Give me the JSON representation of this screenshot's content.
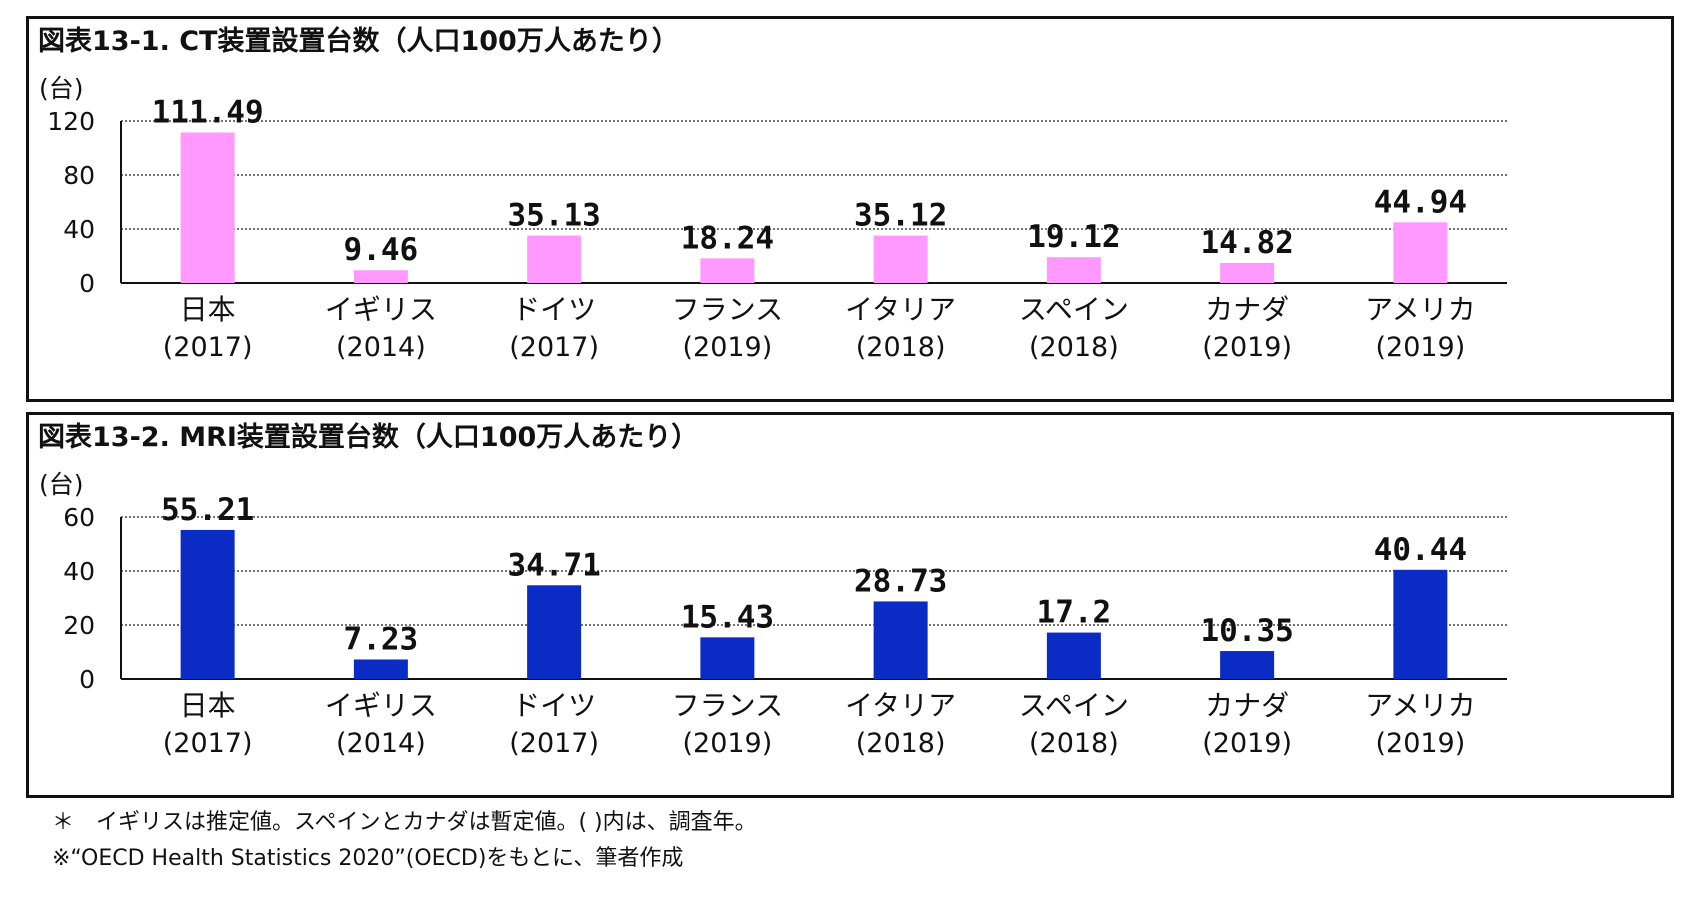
{
  "chart_data": [
    {
      "type": "bar",
      "title": "図表13-1. CT装置設置台数（人口100万人あたり）",
      "unit_label": "(台)",
      "categories": [
        "日本",
        "イギリス",
        "ドイツ",
        "フランス",
        "イタリア",
        "スペイン",
        "カナダ",
        "アメリカ"
      ],
      "category_years": [
        "(2017)",
        "(2014)",
        "(2017)",
        "(2019)",
        "(2018)",
        "(2018)",
        "(2019)",
        "(2019)"
      ],
      "values": [
        111.49,
        9.46,
        35.13,
        18.24,
        35.12,
        19.12,
        14.82,
        44.94
      ],
      "value_labels": [
        "111.49",
        "9.46",
        "35.13",
        "18.24",
        "35.12",
        "19.12",
        "14.82",
        "44.94"
      ],
      "ylim": [
        0,
        120
      ],
      "yticks": [
        0,
        40,
        80,
        120
      ],
      "grid": true,
      "grid_style": "dotted",
      "bar_color": "#ff99ff"
    },
    {
      "type": "bar",
      "title": "図表13-2. MRI装置設置台数（人口100万人あたり）",
      "unit_label": "(台)",
      "categories": [
        "日本",
        "イギリス",
        "ドイツ",
        "フランス",
        "イタリア",
        "スペイン",
        "カナダ",
        "アメリカ"
      ],
      "category_years": [
        "(2017)",
        "(2014)",
        "(2017)",
        "(2019)",
        "(2018)",
        "(2018)",
        "(2019)",
        "(2019)"
      ],
      "values": [
        55.21,
        7.23,
        34.71,
        15.43,
        28.73,
        17.2,
        10.35,
        40.44
      ],
      "value_labels": [
        "55.21",
        "7.23",
        "34.71",
        "15.43",
        "28.73",
        "17.2",
        "10.35",
        "40.44"
      ],
      "ylim": [
        0,
        60
      ],
      "yticks": [
        0,
        20,
        40,
        60
      ],
      "grid": true,
      "grid_style": "dotted",
      "bar_color": "#0a2bc4"
    }
  ],
  "notes": {
    "line1": "＊　イギリスは推定値。スペインとカナダは暫定値。( )内は、調査年。",
    "line2": "※“OECD Health Statistics 2020”(OECD)をもとに、筆者作成"
  }
}
